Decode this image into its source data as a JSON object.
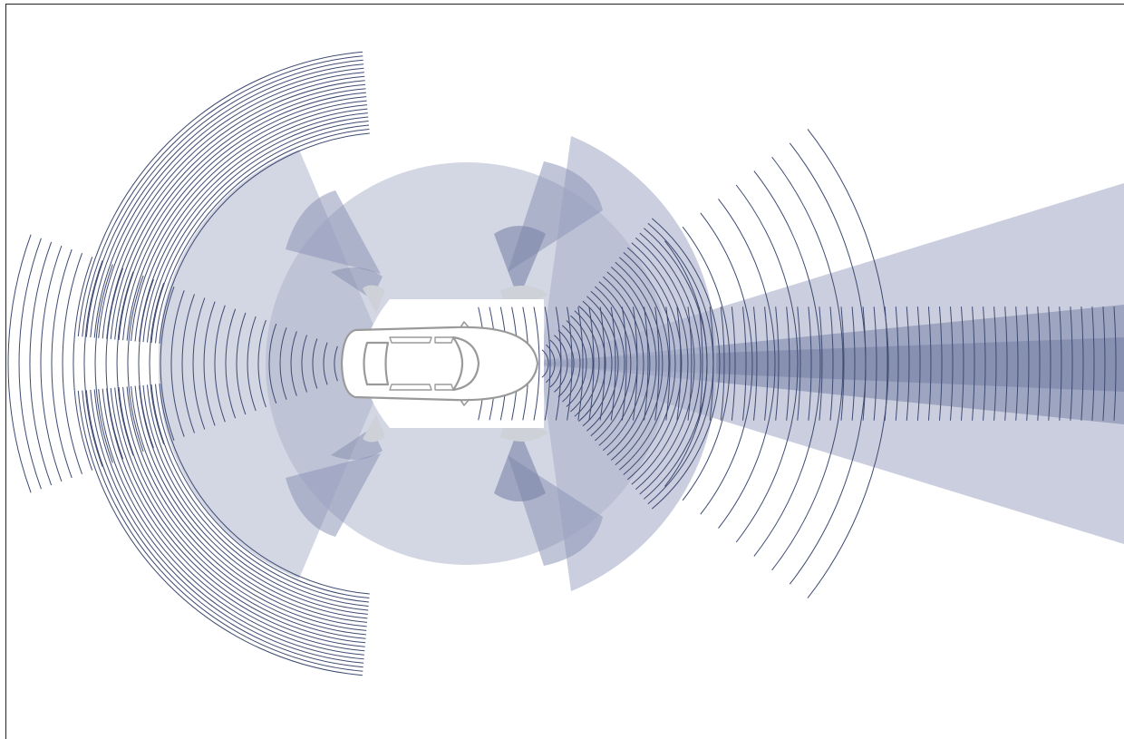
{
  "diagram": {
    "kind": "vehicle-sensor-coverage",
    "colors": {
      "background": "#ffffff",
      "frame": "#222222",
      "zone_fill": "#aeb4cc",
      "zone_fill_dark": "#7a84a8",
      "zone_core": "#5d6a92",
      "arc_stroke": "#3e4a72",
      "near_fill": "#cfd1d8",
      "car_stroke": "#9a9a9a",
      "car_fill": "#ffffff"
    },
    "sensors": [
      {
        "id": "long-range-radar-front",
        "direction": "front",
        "type": "radar-arcs"
      },
      {
        "id": "front-camera",
        "direction": "front",
        "type": "cone"
      },
      {
        "id": "lidar-front",
        "direction": "front",
        "type": "wide-cone"
      },
      {
        "id": "mid-range-radar-front",
        "direction": "front",
        "type": "radar-arcs"
      },
      {
        "id": "surround-view",
        "direction": "all",
        "type": "circle"
      },
      {
        "id": "short-range-radar-rear-left",
        "direction": "rear-left",
        "type": "radar-arcs"
      },
      {
        "id": "short-range-radar-rear-right",
        "direction": "rear-right",
        "type": "radar-arcs"
      },
      {
        "id": "rear-radar",
        "direction": "rear",
        "type": "radar-arcs"
      },
      {
        "id": "ultrasonic-sensors",
        "direction": "near-field",
        "type": "lobes"
      }
    ]
  }
}
